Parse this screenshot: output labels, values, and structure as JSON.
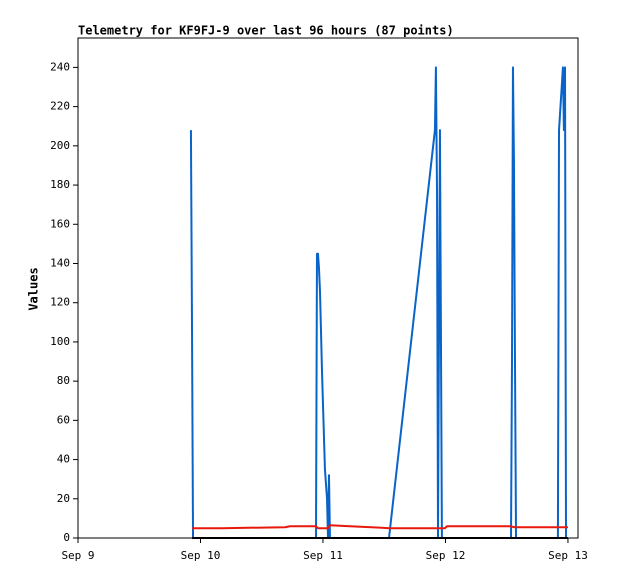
{
  "chart_data": {
    "type": "line",
    "title": "Telemetry for KF9FJ-9 over last 96 hours (87 points)",
    "y_label": "Values",
    "xlim": [
      0,
      4.082
    ],
    "ylim": [
      0,
      255
    ],
    "xticks": [
      {
        "value": 0,
        "label": "Sep 9"
      },
      {
        "value": 1,
        "label": "Sep 10"
      },
      {
        "value": 2,
        "label": "Sep 11"
      },
      {
        "value": 3,
        "label": "Sep 12"
      },
      {
        "value": 4,
        "label": "Sep 13"
      }
    ],
    "yticks": [
      0,
      20,
      40,
      60,
      80,
      100,
      120,
      140,
      160,
      180,
      200,
      220,
      240
    ],
    "series": [
      {
        "color": "#0a64c8",
        "width": 2,
        "x": [
          0.922,
          0.931,
          0.939,
          1.943,
          1.951,
          1.959,
          1.967,
          1.976,
          1.992,
          2.016,
          2.033,
          2.041,
          2.049,
          2.057,
          2.539,
          2.914,
          2.922,
          2.931,
          2.939,
          2.955,
          2.963,
          2.971,
          3.535,
          3.543,
          3.551,
          3.559,
          3.567,
          3.576,
          3.918,
          3.927,
          3.943,
          3.959,
          3.967,
          3.976,
          3.984
        ],
        "values": [
          208,
          104,
          0,
          0,
          145,
          145,
          138,
          125,
          85,
          35,
          20,
          0,
          32,
          0,
          0,
          208,
          240,
          176,
          0,
          208,
          104,
          0,
          0,
          88,
          240,
          192,
          96,
          0,
          0,
          208,
          224,
          240,
          208,
          240,
          0
        ]
      },
      {
        "color": "#e8180c",
        "width": 2,
        "x": [
          0.931,
          1.176,
          1.69,
          1.731,
          1.943,
          1.959,
          2.041,
          2.057,
          2.22,
          2.547,
          2.996,
          3.012,
          3.527,
          3.567,
          4.0
        ],
        "values": [
          5,
          5,
          5.5,
          6,
          6,
          5,
          5,
          6.5,
          6,
          5,
          5,
          6,
          6,
          5.5,
          5.5
        ]
      },
      {
        "color": "#000000",
        "width": 2,
        "x": [
          0.931,
          4.0
        ],
        "values": [
          0,
          0
        ]
      }
    ]
  }
}
